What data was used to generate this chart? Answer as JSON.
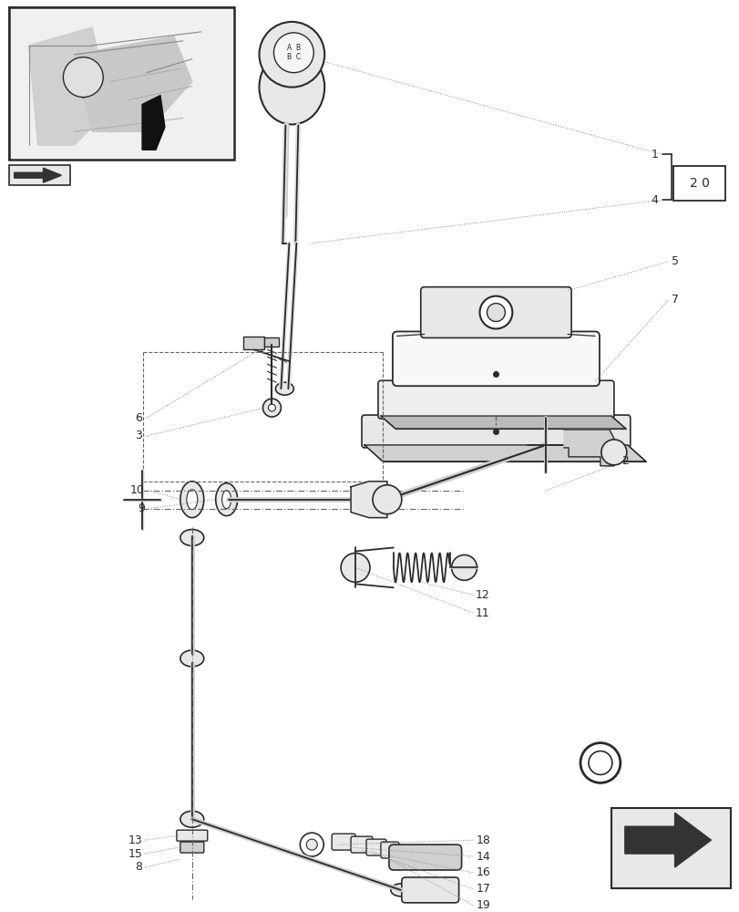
{
  "bg_color": "#ffffff",
  "lc": "#2a2a2a",
  "gray1": "#e8e8e8",
  "gray2": "#d0d0d0",
  "gray3": "#bbbbbb"
}
